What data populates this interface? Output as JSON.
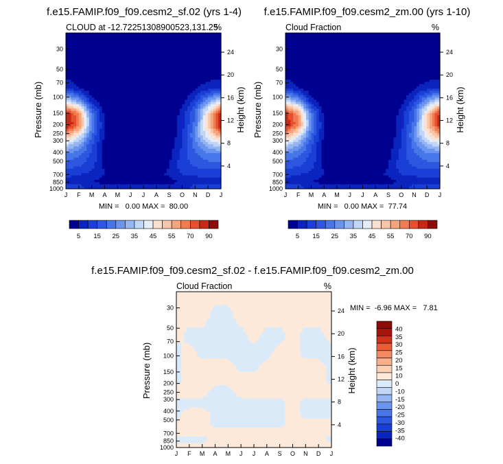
{
  "chart_data": [
    {
      "type": "heatmap",
      "title": "f.e15.FAMIP.f09_f09.cesm2_sf.02 (yrs 1-4)",
      "subtitle_left": "CLOUD at -12.72251308900523,131.25",
      "subtitle_right": "%",
      "ylabel": "Pressure (mb)",
      "ylabel_right": "Height (km)",
      "x_ticks": [
        "J",
        "F",
        "M",
        "A",
        "M",
        "J",
        "J",
        "A",
        "S",
        "O",
        "N",
        "D",
        "J"
      ],
      "y_ticks": [
        30,
        50,
        70,
        100,
        150,
        200,
        250,
        300,
        400,
        500,
        700,
        850,
        1000
      ],
      "y_right_ticks": [
        24,
        20,
        16,
        12,
        8,
        4
      ],
      "ylim": [
        1000,
        20
      ],
      "stats": "MIN =   0.00 MAX =  80.00",
      "levels": [
        5,
        10,
        15,
        20,
        25,
        30,
        35,
        40,
        45,
        50,
        55,
        60,
        65,
        70,
        80,
        90
      ],
      "colorbar_labels": [
        "5",
        "15",
        "25",
        "35",
        "45",
        "55",
        "70",
        "90"
      ],
      "colorbar_colors": [
        "#000090",
        "#0a24bd",
        "#1a3fd6",
        "#2d57e0",
        "#4676e8",
        "#6b94ee",
        "#95b5f3",
        "#c1d5f7",
        "#e6edf7",
        "#fbe0cf",
        "#f9c5a8",
        "#f6a47c",
        "#f17c52",
        "#e6502e",
        "#c62a16",
        "#8e0c08"
      ],
      "grid_rows": [
        {
          "p": 20,
          "v": [
            0,
            0,
            0,
            0,
            0,
            0,
            0,
            0,
            0,
            0,
            0,
            0,
            0
          ]
        },
        {
          "p": 50,
          "v": [
            0,
            0,
            0,
            0,
            0,
            0,
            0,
            0,
            0,
            0,
            0,
            0,
            0
          ]
        },
        {
          "p": 80,
          "v": [
            10,
            5,
            0,
            0,
            0,
            0,
            0,
            0,
            0,
            0,
            4,
            8,
            10
          ]
        },
        {
          "p": 110,
          "v": [
            40,
            28,
            8,
            0,
            0,
            0,
            0,
            0,
            0,
            3,
            12,
            28,
            40
          ]
        },
        {
          "p": 150,
          "v": [
            74,
            60,
            22,
            3,
            0,
            0,
            0,
            0,
            0,
            7,
            20,
            48,
            74
          ]
        },
        {
          "p": 200,
          "v": [
            78,
            64,
            26,
            4,
            0,
            0,
            0,
            0,
            0,
            8,
            22,
            50,
            78
          ]
        },
        {
          "p": 260,
          "v": [
            58,
            44,
            20,
            4,
            0,
            0,
            0,
            0,
            0,
            9,
            26,
            45,
            58
          ]
        },
        {
          "p": 330,
          "v": [
            38,
            30,
            16,
            3,
            0,
            0,
            0,
            0,
            2,
            10,
            22,
            34,
            38
          ]
        },
        {
          "p": 420,
          "v": [
            25,
            21,
            14,
            3,
            0,
            0,
            0,
            0,
            3,
            12,
            19,
            24,
            25
          ]
        },
        {
          "p": 550,
          "v": [
            18,
            16,
            12,
            4,
            2,
            1,
            1,
            2,
            5,
            13,
            16,
            18,
            18
          ]
        },
        {
          "p": 700,
          "v": [
            12,
            10,
            9,
            5,
            3,
            2,
            2,
            3,
            6,
            10,
            11,
            12,
            12
          ]
        },
        {
          "p": 850,
          "v": [
            7,
            6,
            5,
            3,
            2,
            2,
            2,
            2,
            3,
            5,
            6,
            7,
            7
          ]
        },
        {
          "p": 950,
          "v": [
            14,
            12,
            10,
            8,
            7,
            7,
            7,
            7,
            8,
            10,
            12,
            13,
            14
          ]
        },
        {
          "p": 1000,
          "v": [
            10,
            9,
            8,
            6,
            5,
            5,
            5,
            5,
            6,
            8,
            9,
            10,
            10
          ]
        }
      ]
    },
    {
      "type": "heatmap",
      "title": "f.e15.FAMIP.f09_f09.cesm2_zm.00 (yrs 1-10)",
      "subtitle_left": "Cloud Fraction",
      "subtitle_right": "%",
      "ylabel": "Pressure (mb)",
      "ylabel_right": "Height (km)",
      "x_ticks": [
        "J",
        "F",
        "M",
        "A",
        "M",
        "J",
        "J",
        "A",
        "S",
        "O",
        "N",
        "D",
        "J"
      ],
      "y_ticks": [
        30,
        50,
        70,
        100,
        150,
        200,
        250,
        300,
        400,
        500,
        700,
        850,
        1000
      ],
      "y_right_ticks": [
        24,
        20,
        16,
        12,
        8,
        4
      ],
      "ylim": [
        1000,
        20
      ],
      "stats": "MIN =   0.00 MAX =  77.74",
      "levels": [
        5,
        10,
        15,
        20,
        25,
        30,
        35,
        40,
        45,
        50,
        55,
        60,
        65,
        70,
        80,
        90
      ],
      "colorbar_labels": [
        "5",
        "15",
        "25",
        "35",
        "45",
        "55",
        "70",
        "90"
      ],
      "colorbar_colors": [
        "#000090",
        "#0a24bd",
        "#1a3fd6",
        "#2d57e0",
        "#4676e8",
        "#6b94ee",
        "#95b5f3",
        "#c1d5f7",
        "#e6edf7",
        "#fbe0cf",
        "#f9c5a8",
        "#f6a47c",
        "#f17c52",
        "#e6502e",
        "#c62a16",
        "#8e0c08"
      ],
      "grid_rows": [
        {
          "p": 20,
          "v": [
            0,
            0,
            0,
            0,
            0,
            0,
            0,
            0,
            0,
            0,
            0,
            0,
            0
          ]
        },
        {
          "p": 50,
          "v": [
            0,
            0,
            0,
            0,
            0,
            0,
            0,
            0,
            0,
            0,
            0,
            0,
            0
          ]
        },
        {
          "p": 80,
          "v": [
            10,
            5,
            0,
            0,
            0,
            0,
            0,
            0,
            0,
            0,
            4,
            8,
            10
          ]
        },
        {
          "p": 110,
          "v": [
            40,
            28,
            8,
            0,
            0,
            0,
            0,
            0,
            0,
            3,
            12,
            28,
            40
          ]
        },
        {
          "p": 150,
          "v": [
            72,
            58,
            22,
            3,
            0,
            0,
            0,
            0,
            0,
            7,
            20,
            48,
            72
          ]
        },
        {
          "p": 200,
          "v": [
            76,
            62,
            26,
            4,
            0,
            0,
            0,
            0,
            0,
            8,
            22,
            50,
            76
          ]
        },
        {
          "p": 260,
          "v": [
            57,
            43,
            20,
            4,
            0,
            0,
            0,
            0,
            0,
            9,
            26,
            45,
            57
          ]
        },
        {
          "p": 330,
          "v": [
            38,
            30,
            16,
            3,
            0,
            0,
            0,
            0,
            2,
            10,
            22,
            34,
            38
          ]
        },
        {
          "p": 420,
          "v": [
            25,
            21,
            14,
            3,
            0,
            0,
            0,
            0,
            3,
            12,
            19,
            24,
            25
          ]
        },
        {
          "p": 550,
          "v": [
            18,
            16,
            12,
            4,
            2,
            1,
            1,
            2,
            5,
            13,
            16,
            18,
            18
          ]
        },
        {
          "p": 700,
          "v": [
            12,
            10,
            9,
            5,
            3,
            2,
            2,
            3,
            6,
            10,
            11,
            12,
            12
          ]
        },
        {
          "p": 850,
          "v": [
            7,
            6,
            5,
            3,
            2,
            2,
            2,
            2,
            3,
            5,
            6,
            7,
            7
          ]
        },
        {
          "p": 950,
          "v": [
            14,
            12,
            10,
            8,
            7,
            7,
            7,
            7,
            8,
            10,
            12,
            13,
            14
          ]
        },
        {
          "p": 1000,
          "v": [
            10,
            9,
            8,
            6,
            5,
            5,
            5,
            5,
            6,
            8,
            9,
            10,
            10
          ]
        }
      ]
    },
    {
      "type": "heatmap",
      "title": "f.e15.FAMIP.f09_f09.cesm2_sf.02 - f.e15.FAMIP.f09_f09.cesm2_zm.00",
      "subtitle_left": "Cloud Fraction",
      "subtitle_right": "%",
      "ylabel": "Pressure (mb)",
      "ylabel_right": "Height (km)",
      "x_ticks": [
        "J",
        "F",
        "M",
        "A",
        "M",
        "J",
        "J",
        "A",
        "S",
        "O",
        "N",
        "D",
        "J"
      ],
      "y_ticks": [
        30,
        50,
        70,
        100,
        150,
        200,
        250,
        300,
        400,
        500,
        700,
        850,
        1000
      ],
      "y_right_ticks": [
        24,
        20,
        16,
        12,
        8,
        4
      ],
      "ylim": [
        1000,
        20
      ],
      "stats": "MIN =  -6.96 MAX =   7.81",
      "levels": [
        -40,
        -35,
        -30,
        -25,
        -20,
        -15,
        -10,
        -5,
        0,
        5,
        10,
        15,
        20,
        25,
        30,
        35,
        40
      ],
      "colorbar_labels": [
        "40",
        "35",
        "30",
        "25",
        "20",
        "15",
        "10",
        "0",
        "-10",
        "-15",
        "-20",
        "-25",
        "-30",
        "-35",
        "-40"
      ],
      "colorbar_colors": [
        "#000090",
        "#0a24bd",
        "#1a3fd6",
        "#2d57e0",
        "#4676e8",
        "#6b94ee",
        "#95b5f3",
        "#c1d5f7",
        "#daeaf9",
        "#fde9d9",
        "#fbd0b4",
        "#f8b08c",
        "#f38a62",
        "#ea5c38",
        "#d1321b",
        "#a5150b",
        "#8e0c08"
      ],
      "grid_rows": [
        {
          "p": 20,
          "v": [
            1,
            1,
            1,
            1,
            1,
            1,
            1,
            1,
            1,
            1,
            1,
            1,
            1
          ]
        },
        {
          "p": 40,
          "v": [
            1,
            1,
            1,
            -1,
            -1,
            1,
            1,
            1,
            1,
            1,
            1,
            1,
            1
          ]
        },
        {
          "p": 60,
          "v": [
            1,
            -1,
            -1,
            -1,
            -1,
            -1,
            1,
            -1,
            -1,
            1,
            -1,
            -1,
            1
          ]
        },
        {
          "p": 90,
          "v": [
            -1,
            1,
            -1,
            -1,
            -1,
            -1,
            -1,
            -1,
            1,
            1,
            -1,
            -1,
            -1
          ]
        },
        {
          "p": 130,
          "v": [
            -1,
            1,
            1,
            1,
            1,
            -1,
            -1,
            1,
            1,
            1,
            1,
            1,
            -1
          ]
        },
        {
          "p": 180,
          "v": [
            -1,
            1,
            1,
            1,
            1,
            1,
            1,
            1,
            1,
            1,
            1,
            1,
            -1
          ]
        },
        {
          "p": 250,
          "v": [
            1,
            1,
            1,
            -1,
            -1,
            1,
            1,
            1,
            1,
            1,
            1,
            1,
            1
          ]
        },
        {
          "p": 330,
          "v": [
            -1,
            -1,
            -1,
            -1,
            -1,
            -1,
            -1,
            -1,
            -1,
            1,
            -1,
            -1,
            -1
          ]
        },
        {
          "p": 420,
          "v": [
            -1,
            1,
            1,
            -1,
            -1,
            -1,
            -1,
            -1,
            -1,
            1,
            -1,
            -1,
            -1
          ]
        },
        {
          "p": 550,
          "v": [
            1,
            1,
            1,
            -1,
            -1,
            -1,
            -1,
            -1,
            -1,
            1,
            1,
            1,
            1
          ]
        },
        {
          "p": 680,
          "v": [
            1,
            1,
            1,
            1,
            1,
            1,
            1,
            1,
            1,
            1,
            1,
            1,
            1
          ]
        },
        {
          "p": 800,
          "v": [
            -1,
            -1,
            -1,
            1,
            1,
            1,
            1,
            1,
            1,
            1,
            1,
            1,
            -1
          ]
        },
        {
          "p": 1000,
          "v": [
            1,
            1,
            1,
            1,
            1,
            1,
            1,
            1,
            1,
            1,
            1,
            1,
            1
          ]
        }
      ]
    }
  ]
}
